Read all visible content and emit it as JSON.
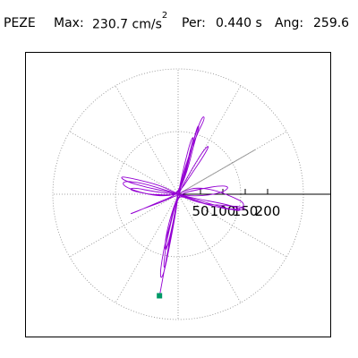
{
  "header": {
    "station": "PEZE",
    "max_label": "Max:",
    "max_value": "230.7 cm/s",
    "max_exp": "2",
    "per_label": "Per:",
    "per_value": "0.440 s",
    "ang_label": "Ang:",
    "ang_value": "259.6"
  },
  "chart_data": {
    "type": "line",
    "title": "",
    "subtitle": "",
    "radial_unit": "cm/s^2",
    "radial_ticks": [
      50,
      100,
      150,
      200
    ],
    "radial_tick_labels": [
      "50",
      "100",
      "150",
      "200"
    ],
    "r_max": 280,
    "angular_grid_step_deg": 30,
    "grid": true,
    "max_angle_deg": 259.6,
    "max_value": 230.7,
    "peak_marker_color": "#009966",
    "trace_color": "#9400d3",
    "reference_line_color": "#999999",
    "reference_line_angle_deg": 30,
    "reference_line_length": 200,
    "trace": {
      "comment_units": "cm/s^2, east positive x, north positive y",
      "points": [
        [
          0,
          0
        ],
        [
          15,
          8
        ],
        [
          40,
          15
        ],
        [
          80,
          10
        ],
        [
          120,
          -5
        ],
        [
          150,
          -20
        ],
        [
          140,
          -35
        ],
        [
          90,
          -30
        ],
        [
          40,
          -15
        ],
        [
          0,
          0
        ],
        [
          -30,
          10
        ],
        [
          -80,
          25
        ],
        [
          -120,
          30
        ],
        [
          -125,
          20
        ],
        [
          -90,
          5
        ],
        [
          -40,
          -5
        ],
        [
          0,
          0
        ],
        [
          10,
          40
        ],
        [
          25,
          90
        ],
        [
          45,
          140
        ],
        [
          60,
          170
        ],
        [
          55,
          175
        ],
        [
          40,
          140
        ],
        [
          25,
          80
        ],
        [
          10,
          30
        ],
        [
          0,
          0
        ],
        [
          -10,
          -40
        ],
        [
          -25,
          -90
        ],
        [
          -35,
          -140
        ],
        [
          -40,
          -175
        ],
        [
          -38,
          -190
        ],
        [
          -30,
          -170
        ],
        [
          -18,
          -110
        ],
        [
          -5,
          -40
        ],
        [
          0,
          0
        ],
        [
          40,
          -10
        ],
        [
          95,
          -20
        ],
        [
          135,
          -30
        ],
        [
          140,
          -38
        ],
        [
          110,
          -32
        ],
        [
          60,
          -18
        ],
        [
          0,
          0
        ],
        [
          -40,
          20
        ],
        [
          -100,
          35
        ],
        [
          -130,
          40
        ],
        [
          -120,
          30
        ],
        [
          -70,
          15
        ],
        [
          -20,
          5
        ],
        [
          0,
          0
        ],
        [
          20,
          50
        ],
        [
          35,
          110
        ],
        [
          48,
          155
        ],
        [
          42,
          150
        ],
        [
          30,
          100
        ],
        [
          15,
          40
        ],
        [
          0,
          0
        ],
        [
          -15,
          -50
        ],
        [
          -28,
          -120
        ],
        [
          -33,
          -165
        ],
        [
          -28,
          -160
        ],
        [
          -18,
          -100
        ],
        [
          -5,
          -30
        ],
        [
          0,
          0
        ],
        [
          50,
          12
        ],
        [
          100,
          20
        ],
        [
          115,
          15
        ],
        [
          95,
          2
        ],
        [
          40,
          -5
        ],
        [
          0,
          0
        ],
        [
          -30,
          -15
        ],
        [
          -85,
          -35
        ],
        [
          -110,
          -45
        ],
        [
          -95,
          -40
        ],
        [
          -45,
          -18
        ],
        [
          0,
          0
        ],
        [
          30,
          45
        ],
        [
          60,
          90
        ],
        [
          70,
          110
        ],
        [
          58,
          100
        ],
        [
          30,
          55
        ],
        [
          0,
          0
        ],
        [
          -20,
          -60
        ],
        [
          -30,
          -110
        ],
        [
          -28,
          -130
        ],
        [
          -18,
          -95
        ],
        [
          -5,
          -30
        ],
        [
          0,
          0
        ],
        [
          45,
          -20
        ],
        [
          100,
          -25
        ],
        [
          145,
          -28
        ],
        [
          150,
          -34
        ],
        [
          125,
          -36
        ],
        [
          70,
          -25
        ],
        [
          15,
          -8
        ],
        [
          0,
          0
        ],
        [
          -50,
          5
        ],
        [
          -100,
          15
        ],
        [
          -110,
          10
        ],
        [
          -70,
          0
        ],
        [
          -20,
          -2
        ],
        [
          0,
          0
        ],
        [
          5,
          25
        ],
        [
          15,
          70
        ],
        [
          28,
          120
        ],
        [
          35,
          130
        ],
        [
          30,
          110
        ],
        [
          18,
          60
        ],
        [
          5,
          15
        ],
        [
          0,
          0
        ],
        [
          -8,
          -30
        ],
        [
          -20,
          -80
        ],
        [
          -28,
          -120
        ],
        [
          -22,
          -115
        ],
        [
          -12,
          -70
        ],
        [
          -2,
          -20
        ],
        [
          0,
          0
        ],
        [
          -41.4,
          -227.0
        ]
      ]
    }
  }
}
